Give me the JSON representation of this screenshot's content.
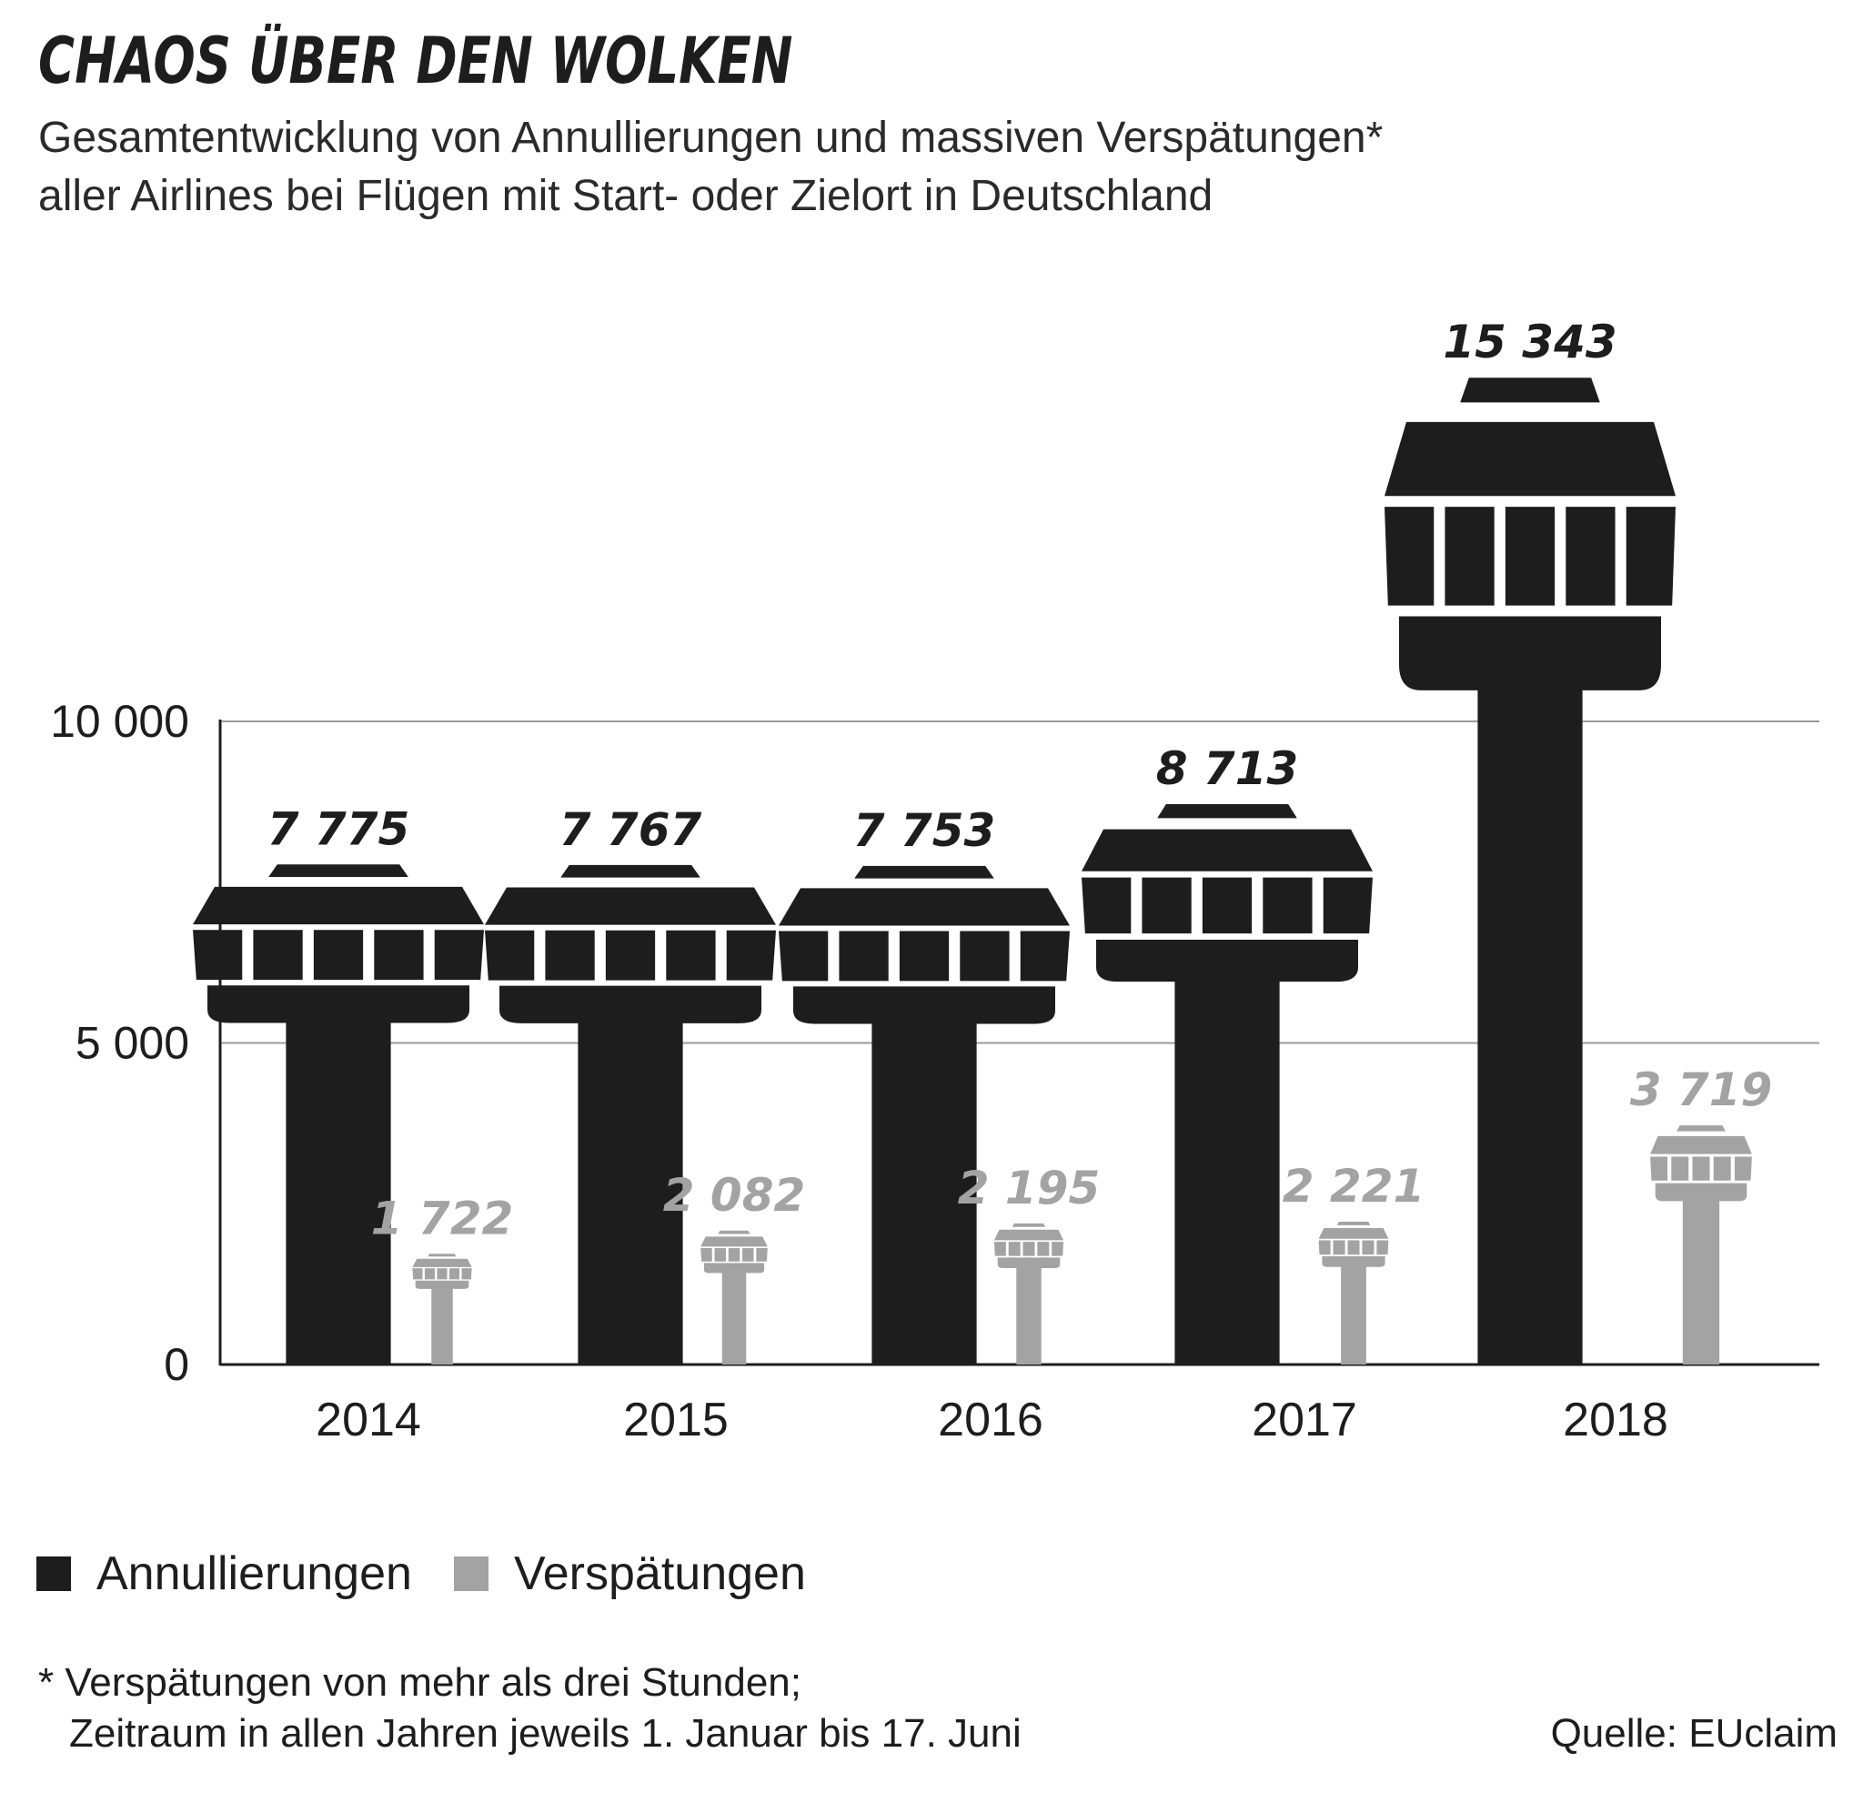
{
  "title": "CHAOS ÜBER DEN WOLKEN",
  "subtitle": {
    "line1": "Gesamtentwicklung von Annullierungen und massiven Verspätungen*",
    "line2": "aller Airlines bei Flügen mit Start- oder Zielort in Deutschland"
  },
  "chart_data": {
    "type": "bar",
    "categories": [
      "2014",
      "2015",
      "2016",
      "2017",
      "2018"
    ],
    "series": [
      {
        "name": "Annullierungen",
        "values": [
          7775,
          7767,
          7753,
          8713,
          15343
        ],
        "labels": [
          "7 775",
          "7 767",
          "7 753",
          "8 713",
          "15 343"
        ],
        "color": "#1d1d1d"
      },
      {
        "name": "Verspätungen",
        "values": [
          1722,
          2082,
          2195,
          2221,
          3719
        ],
        "labels": [
          "1 722",
          "2 082",
          "2 195",
          "2 221",
          "3 719"
        ],
        "color": "#a3a3a3"
      }
    ],
    "yticks": [
      0,
      5000,
      10000
    ],
    "ytick_labels": [
      "0",
      "5 000",
      "10 000"
    ],
    "ylim": [
      0,
      16000
    ],
    "grid": true,
    "legend": "bottom-left",
    "mark_style": "control-tower-pictogram"
  },
  "legend": {
    "items": [
      {
        "label": "Annullierungen",
        "color": "#1d1d1d"
      },
      {
        "label": "Verspätungen",
        "color": "#a3a3a3"
      }
    ]
  },
  "footnote": {
    "line1": "* Verspätungen von mehr als drei Stunden;",
    "line2": "Zeitraum in allen Jahren jeweils 1. Januar bis 17. Juni"
  },
  "source": "Quelle: EUclaim"
}
